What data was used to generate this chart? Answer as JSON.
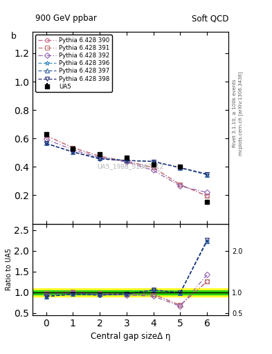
{
  "title_left": "900 GeV ppbar",
  "title_right": "Soft QCD",
  "ylabel_main": "b",
  "ylabel_ratio": "Ratio to UA5",
  "xlabel": "Central gap sizeΔ η",
  "right_label": "Rivet 3.1.10, ≥ 100k events",
  "right_label2": "mcplots.cern.ch [arXiv:1306.3436]",
  "watermark": "UA5_1988_S1867512",
  "x_data": [
    0,
    1,
    2,
    3,
    4,
    5,
    6
  ],
  "UA5_y": [
    0.63,
    0.53,
    0.49,
    0.465,
    0.415,
    0.4,
    0.155
  ],
  "UA5_yerr": [
    0.01,
    0.01,
    0.01,
    0.01,
    0.01,
    0.01,
    0.01
  ],
  "py390_y": [
    0.62,
    0.535,
    0.475,
    0.44,
    0.395,
    0.275,
    0.195
  ],
  "py391_y": [
    0.62,
    0.535,
    0.475,
    0.44,
    0.395,
    0.275,
    0.195
  ],
  "py392_y": [
    0.595,
    0.52,
    0.465,
    0.435,
    0.375,
    0.265,
    0.22
  ],
  "py396_y": [
    0.565,
    0.505,
    0.46,
    0.445,
    0.438,
    0.393,
    0.345
  ],
  "py397_y": [
    0.565,
    0.505,
    0.46,
    0.445,
    0.438,
    0.393,
    0.345
  ],
  "py398_y": [
    0.565,
    0.505,
    0.455,
    0.445,
    0.438,
    0.395,
    0.35
  ],
  "color390": "#c06080",
  "color391": "#c07070",
  "color392": "#9060b0",
  "color396": "#4090c0",
  "color397": "#3060a0",
  "color398": "#202870",
  "marker390": "o",
  "marker391": "s",
  "marker392": "D",
  "marker396": "*",
  "marker397": "^",
  "marker398": "v",
  "lstyle390": "-.",
  "lstyle391": "-.",
  "lstyle392": "-.",
  "lstyle396": "--",
  "lstyle397": "--",
  "lstyle398": "--",
  "ylim_main": [
    0.0,
    1.35
  ],
  "ylim_ratio": [
    0.45,
    2.65
  ],
  "yticks_main": [
    0.2,
    0.4,
    0.6,
    0.8,
    1.0,
    1.2
  ],
  "yticks_ratio": [
    0.5,
    1.0,
    1.5,
    2.0,
    2.5
  ],
  "green_band": 0.05,
  "yellow_band": 0.1
}
